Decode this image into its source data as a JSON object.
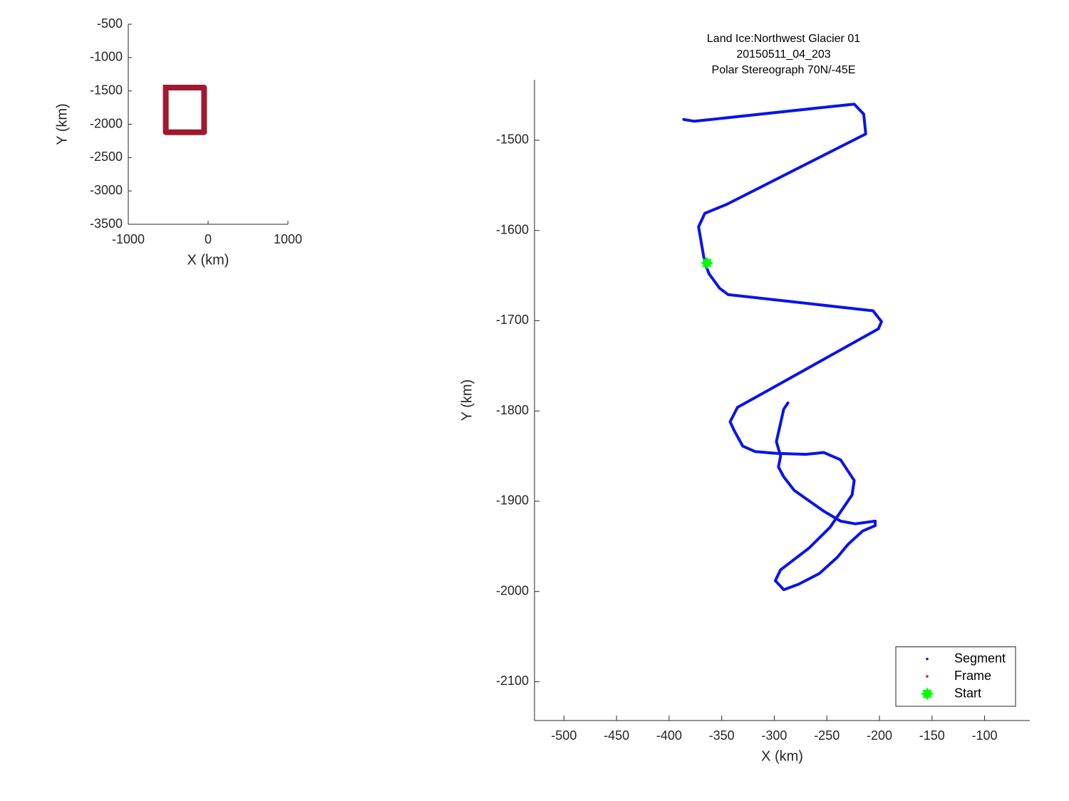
{
  "chart_data": [
    {
      "type": "line",
      "xlabel": "X (km)",
      "ylabel": "Y (km)",
      "xlim": [
        -1000,
        1000
      ],
      "ylim": [
        -3500,
        -500
      ],
      "xticks": [
        -1000,
        0,
        1000
      ],
      "yticks": [
        -3500,
        -3000,
        -2500,
        -2000,
        -1500,
        -1000,
        -500
      ],
      "series": [
        {
          "color": "#a0192f",
          "mode": "line",
          "width": 8,
          "x": [
            -530,
            -50,
            -50,
            -530,
            -530
          ],
          "y": [
            -1450,
            -1450,
            -2120,
            -2120,
            -1450
          ]
        }
      ]
    },
    {
      "type": "line",
      "title": [
        "Land Ice:Northwest Glacier 01",
        "20150511_04_203",
        "Polar Stereograph 70N/-45E"
      ],
      "xlabel": "X (km)",
      "ylabel": "Y (km)",
      "xlim": [
        -528,
        -57
      ],
      "ylim": [
        -2143,
        -1433
      ],
      "xticks": [
        -500,
        -450,
        -400,
        -350,
        -300,
        -250,
        -200,
        -150,
        -100
      ],
      "yticks": [
        -2100,
        -2000,
        -1900,
        -1800,
        -1700,
        -1600,
        -1500
      ],
      "legend": "lower right",
      "series": [
        {
          "name": "Segment",
          "color": "#0a14e6",
          "mode": "line",
          "width": 4,
          "x": [
            -386,
            -376,
            -224,
            -215,
            -213,
            -345,
            -366,
            -372,
            -366,
            -362,
            -352,
            -344,
            -206,
            -198,
            -201,
            -318,
            -335,
            -342,
            -338,
            -330,
            -318,
            -298,
            -270,
            -253,
            -237,
            -224,
            -226,
            -247,
            -267,
            -294,
            -299,
            -291,
            -277,
            -257,
            -240,
            -230,
            -216,
            -204,
            -204,
            -223,
            -237,
            -253,
            -281,
            -291,
            -296,
            -294,
            -298,
            -291,
            -287
          ],
          "y": [
            -1477,
            -1479,
            -1460,
            -1471,
            -1493,
            -1571,
            -1581,
            -1596,
            -1636,
            -1648,
            -1664,
            -1671,
            -1689,
            -1701,
            -1709,
            -1785,
            -1796,
            -1812,
            -1822,
            -1839,
            -1845,
            -1847,
            -1848,
            -1846,
            -1854,
            -1877,
            -1893,
            -1929,
            -1952,
            -1976,
            -1988,
            -1998,
            -1992,
            -1980,
            -1962,
            -1948,
            -1933,
            -1927,
            -1922,
            -1925,
            -1922,
            -1911,
            -1888,
            -1873,
            -1862,
            -1850,
            -1834,
            -1798,
            -1791
          ]
        },
        {
          "name": "Frame",
          "color": "#ff0000",
          "mode": "marker",
          "x": [],
          "y": []
        },
        {
          "name": "Start",
          "color": "#00ff00",
          "mode": "star",
          "x": [
            -364
          ],
          "y": [
            -1636
          ]
        }
      ]
    }
  ]
}
